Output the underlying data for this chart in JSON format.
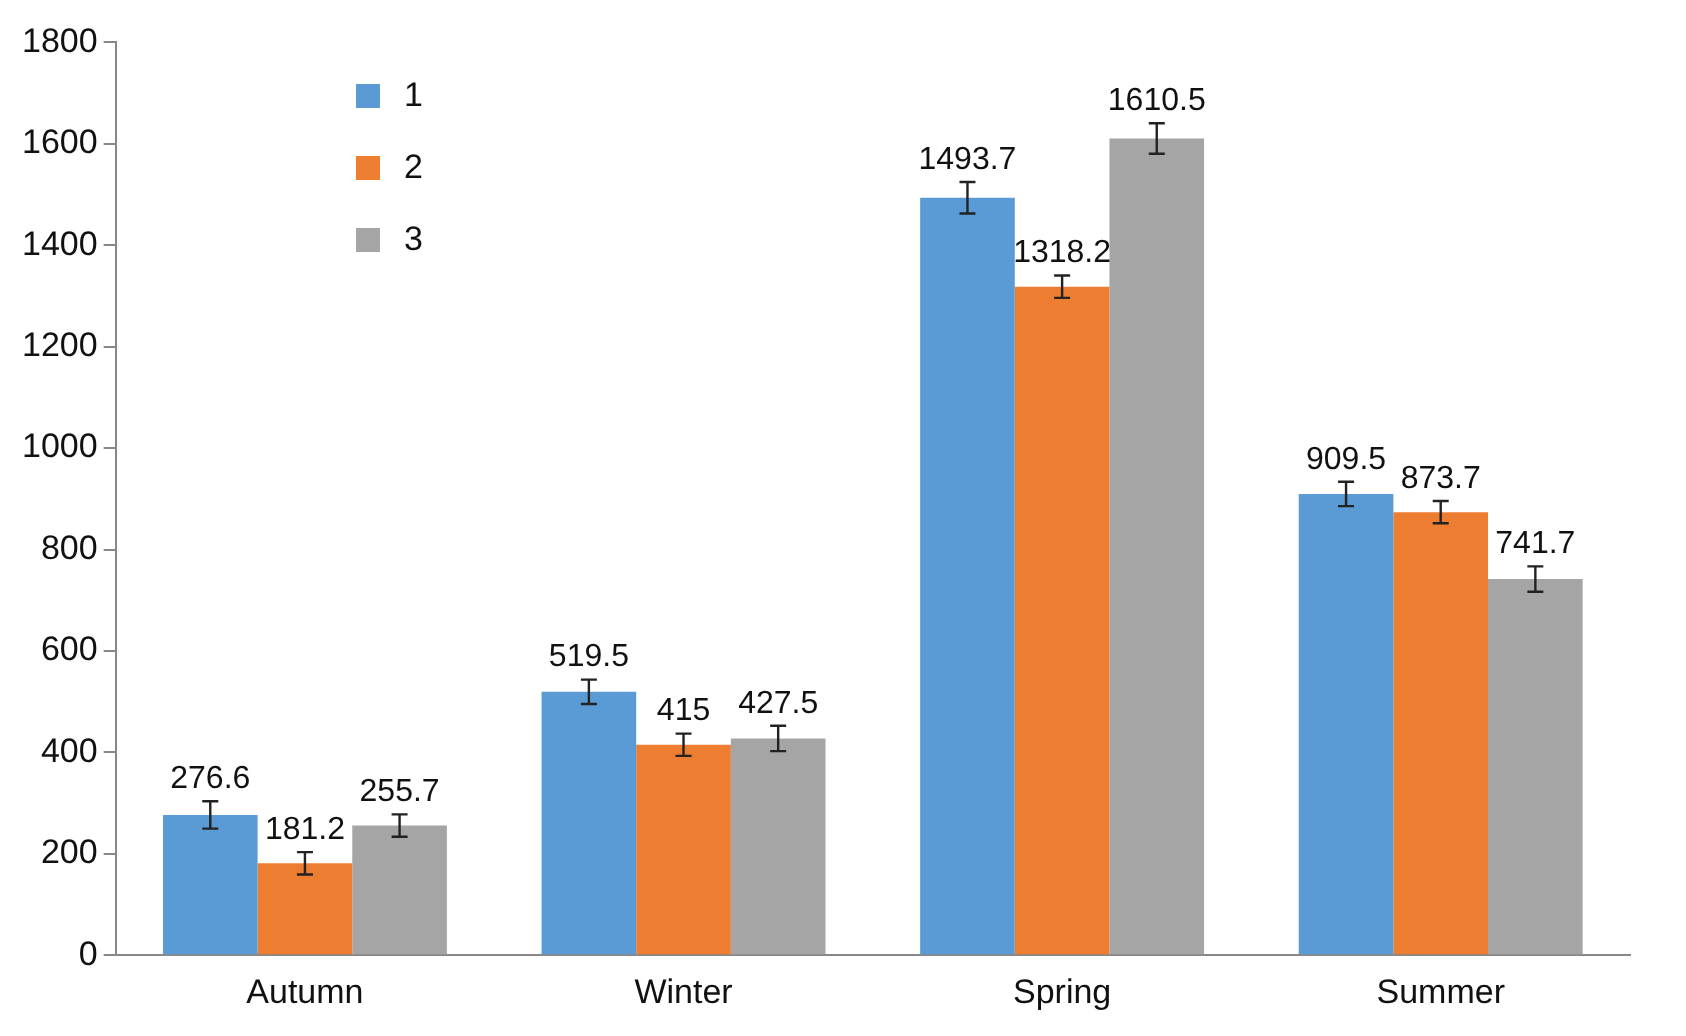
{
  "chart_data": {
    "type": "bar",
    "categories": [
      "Autumn",
      "Winter",
      "Spring",
      "Summer"
    ],
    "series": [
      {
        "name": "1",
        "color": "#5b9bd5",
        "values": [
          276.6,
          519.5,
          1493.7,
          909.5
        ],
        "errors": [
          27,
          24,
          31,
          24
        ]
      },
      {
        "name": "2",
        "color": "#ed7d31",
        "values": [
          181.2,
          415,
          1318.2,
          873.7
        ],
        "errors": [
          22,
          22,
          22,
          22
        ]
      },
      {
        "name": "3",
        "color": "#a5a5a5",
        "values": [
          255.7,
          427.5,
          1610.5,
          741.7
        ],
        "errors": [
          22,
          25,
          30,
          25
        ]
      }
    ],
    "ylim": [
      0,
      1800
    ],
    "yticks": [
      0,
      200,
      400,
      600,
      800,
      1000,
      1200,
      1400,
      1600,
      1800
    ],
    "grid": false,
    "legend": "top left",
    "data_labels": true
  }
}
